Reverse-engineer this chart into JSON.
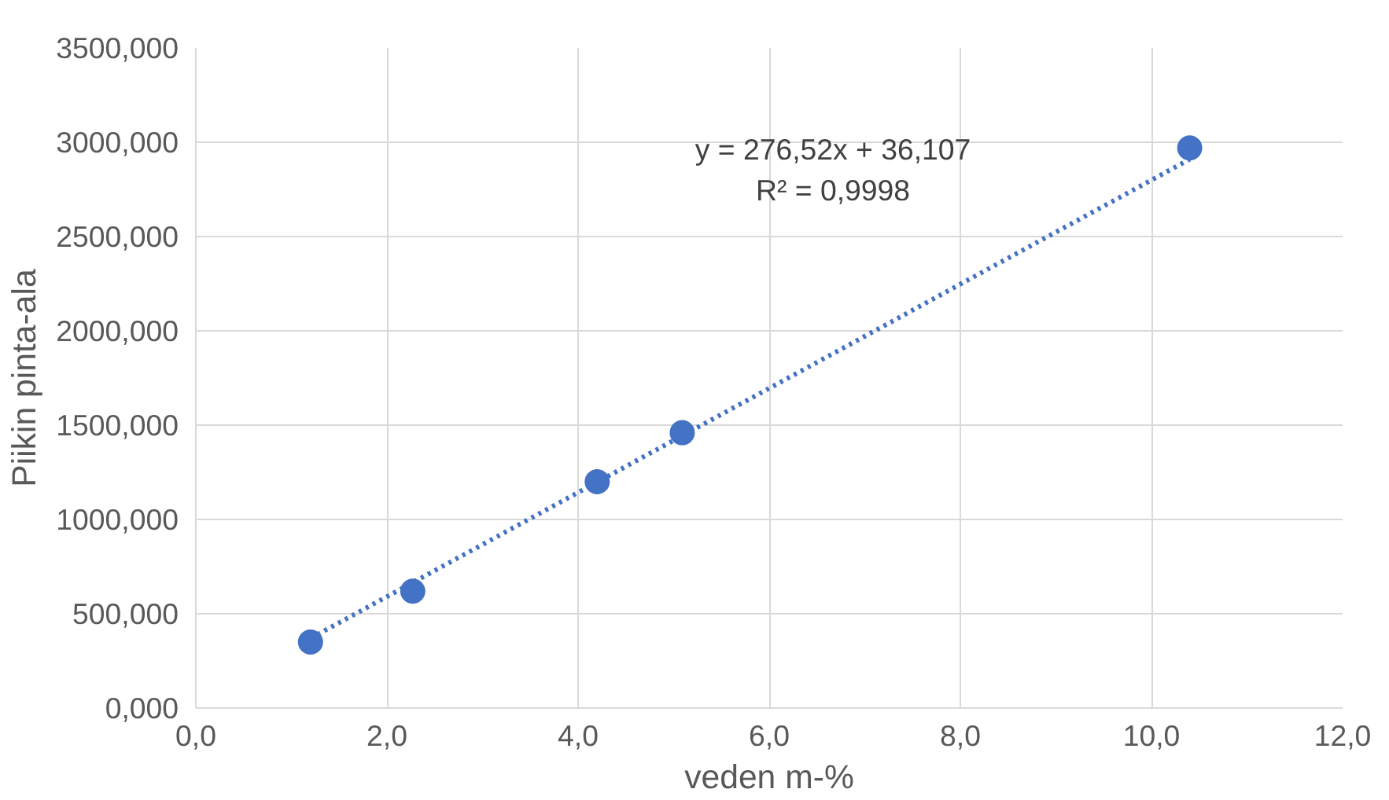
{
  "chart_data": {
    "type": "scatter",
    "xlabel": "veden m-%",
    "ylabel": "Piikin pinta-ala",
    "x": [
      1.2,
      2.27,
      4.2,
      5.09,
      10.4
    ],
    "series": [
      {
        "color": "#4472c4",
        "values": [
          350,
          620,
          1200,
          1460,
          2970
        ],
        "marker": "circle"
      },
      {
        "type": "line",
        "color": "#4472c4",
        "x": [
          1.2,
          10.4
        ],
        "values": [
          370,
          2910
        ],
        "line_style": "dotted",
        "marker": "none"
      }
    ],
    "annotations": [
      "y = 276,52x + 36,107",
      "R² = 0,9998"
    ],
    "xlim": [
      0,
      12
    ],
    "ylim": [
      0,
      3500
    ],
    "xticks": [
      {
        "value": 0,
        "label": "0,0"
      },
      {
        "value": 2,
        "label": "2,0"
      },
      {
        "value": 4,
        "label": "4,0"
      },
      {
        "value": 6,
        "label": "6,0"
      },
      {
        "value": 8,
        "label": "8,0"
      },
      {
        "value": 10,
        "label": "10,0"
      },
      {
        "value": 12,
        "label": "12,0"
      }
    ],
    "yticks": [
      {
        "value": 0,
        "label": "0,000"
      },
      {
        "value": 500,
        "label": "500,000"
      },
      {
        "value": 1000,
        "label": "1000,000"
      },
      {
        "value": 1500,
        "label": "1500,000"
      },
      {
        "value": 2000,
        "label": "2000,000"
      },
      {
        "value": 2500,
        "label": "2500,000"
      },
      {
        "value": 3000,
        "label": "3000,000"
      },
      {
        "value": 3500,
        "label": "3500,000"
      }
    ],
    "grid": true
  }
}
